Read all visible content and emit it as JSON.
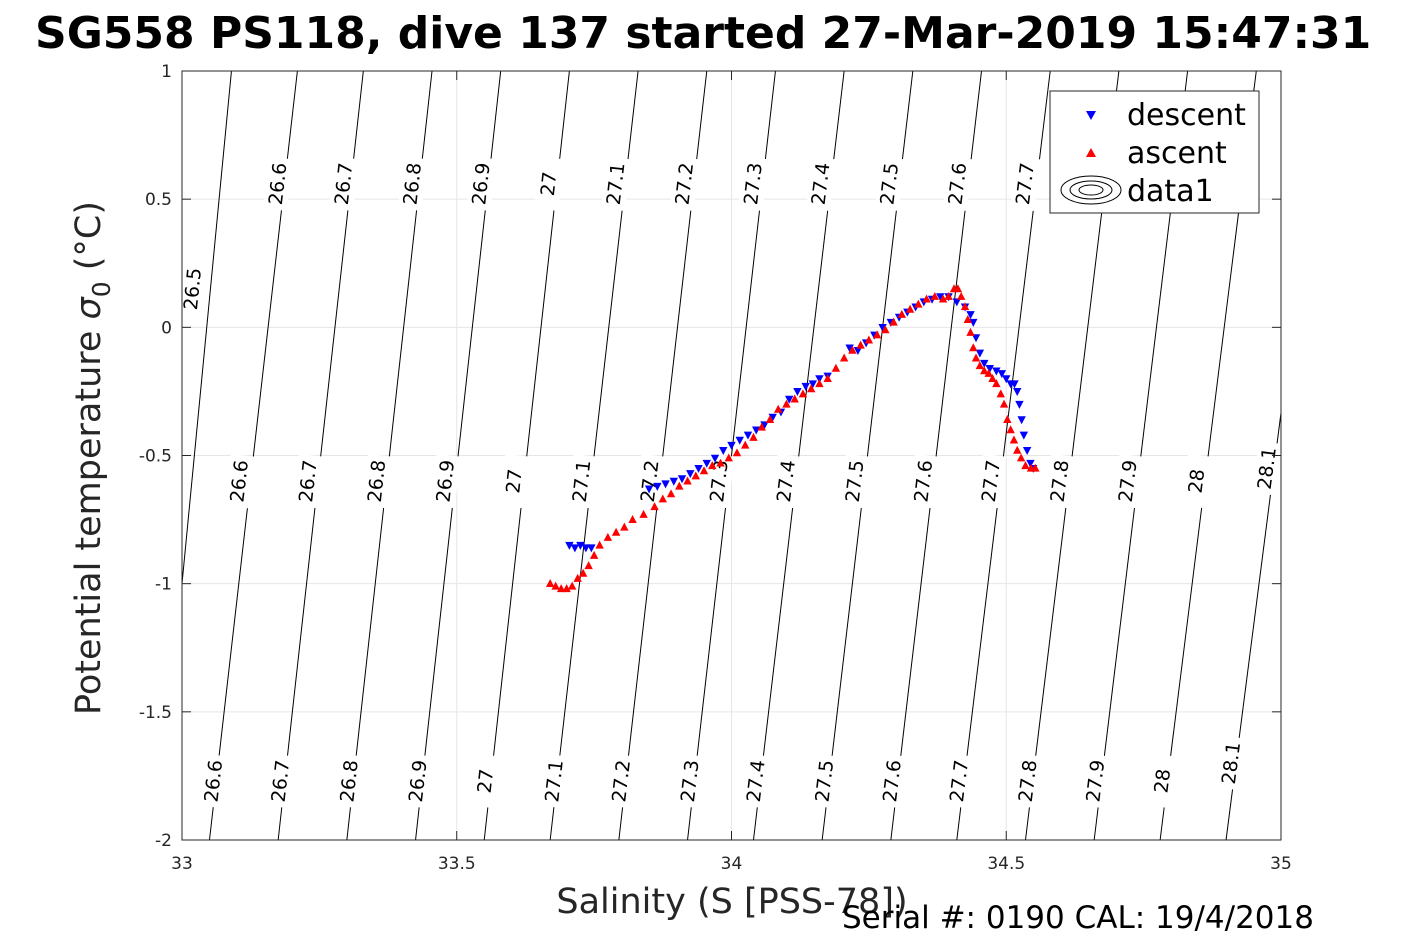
{
  "title": "SG558 PS118, dive 137 started 27-Mar-2019 15:47:31",
  "footer": "Serial #: 0190  CAL: 19/4/2018",
  "chart_data": {
    "type": "scatter",
    "xlabel": "Salinity (S [PSS-78])",
    "ylabel_main": "Potential temperature ",
    "ylabel_sigma": "σ",
    "ylabel_sub": "0",
    "ylabel_unit": " (°C)",
    "xlim": [
      33,
      35
    ],
    "ylim": [
      -2,
      1
    ],
    "xticks": [
      33,
      33.5,
      34,
      34.5,
      35
    ],
    "yticks": [
      -2,
      -1.5,
      -1,
      -0.5,
      0,
      0.5,
      1
    ],
    "grid": true,
    "legend_position": "top-right",
    "legend": [
      "descent",
      "ascent",
      "data1"
    ],
    "colors": {
      "descent": "#0000ff",
      "ascent": "#ff0000",
      "contour": "#000000",
      "grid": "#e6e6e6"
    },
    "contours": [
      {
        "level": "26.5",
        "x_top": 33.09,
        "x_bottom": 32.955,
        "labels": [
          [
            33.02,
            0.15
          ]
        ]
      },
      {
        "level": "26.6",
        "x_top": 33.21,
        "x_bottom": 33.05,
        "labels": [
          [
            33.175,
            0.56
          ],
          [
            33.105,
            -0.6
          ],
          [
            33.058,
            -1.77
          ]
        ]
      },
      {
        "level": "26.7",
        "x_top": 33.33,
        "x_bottom": 33.175,
        "labels": [
          [
            33.295,
            0.56
          ],
          [
            33.23,
            -0.6
          ],
          [
            33.18,
            -1.77
          ]
        ]
      },
      {
        "level": "26.8",
        "x_top": 33.455,
        "x_bottom": 33.3,
        "labels": [
          [
            33.42,
            0.56
          ],
          [
            33.355,
            -0.6
          ],
          [
            33.305,
            -1.77
          ]
        ]
      },
      {
        "level": "26.9",
        "x_top": 33.58,
        "x_bottom": 33.425,
        "labels": [
          [
            33.545,
            0.56
          ],
          [
            33.48,
            -0.6
          ],
          [
            33.43,
            -1.77
          ]
        ]
      },
      {
        "level": "27",
        "x_top": 33.705,
        "x_bottom": 33.55,
        "labels": [
          [
            33.668,
            0.56
          ],
          [
            33.605,
            -0.6
          ],
          [
            33.553,
            -1.77
          ]
        ]
      },
      {
        "level": "27.1",
        "x_top": 33.83,
        "x_bottom": 33.67,
        "labels": [
          [
            33.79,
            0.56
          ],
          [
            33.728,
            -0.6
          ],
          [
            33.678,
            -1.77
          ]
        ]
      },
      {
        "level": "27.2",
        "x_top": 33.955,
        "x_bottom": 33.795,
        "labels": [
          [
            33.915,
            0.56
          ],
          [
            33.852,
            -0.6
          ],
          [
            33.8,
            -1.77
          ]
        ]
      },
      {
        "level": "27.3",
        "x_top": 34.08,
        "x_bottom": 33.92,
        "labels": [
          [
            34.04,
            0.56
          ],
          [
            33.978,
            -0.6
          ],
          [
            33.925,
            -1.77
          ]
        ]
      },
      {
        "level": "27.4",
        "x_top": 34.205,
        "x_bottom": 34.04,
        "labels": [
          [
            34.163,
            0.56
          ],
          [
            34.1,
            -0.6
          ],
          [
            34.045,
            -1.77
          ]
        ]
      },
      {
        "level": "27.5",
        "x_top": 34.33,
        "x_bottom": 34.165,
        "labels": [
          [
            34.288,
            0.56
          ],
          [
            34.225,
            -0.6
          ],
          [
            34.17,
            -1.77
          ]
        ]
      },
      {
        "level": "27.6",
        "x_top": 34.455,
        "x_bottom": 34.29,
        "labels": [
          [
            34.412,
            0.56
          ],
          [
            34.35,
            -0.6
          ],
          [
            34.293,
            -1.77
          ]
        ]
      },
      {
        "level": "27.7",
        "x_top": 34.58,
        "x_bottom": 34.41,
        "labels": [
          [
            34.535,
            0.56
          ],
          [
            34.473,
            -0.6
          ],
          [
            34.415,
            -1.77
          ]
        ]
      },
      {
        "level": "27.8",
        "x_top": 34.705,
        "x_bottom": 34.535,
        "labels": [
          [
            34.598,
            -0.6
          ],
          [
            34.54,
            -1.77
          ]
        ]
      },
      {
        "level": "27.9",
        "x_top": 34.83,
        "x_bottom": 34.66,
        "labels": [
          [
            34.722,
            -0.6
          ],
          [
            34.663,
            -1.77
          ]
        ]
      },
      {
        "level": "28",
        "x_top": 34.955,
        "x_bottom": 34.78,
        "labels": [
          [
            34.847,
            -0.6
          ],
          [
            34.785,
            -1.77
          ]
        ]
      },
      {
        "level": "28.1",
        "x_top": 35.08,
        "x_bottom": 34.9,
        "labels": [
          [
            34.975,
            -0.55
          ],
          [
            34.91,
            -1.7
          ]
        ]
      }
    ],
    "series": [
      {
        "name": "descent",
        "marker": "down-triangle",
        "color": "#0000ff",
        "points": [
          [
            34.549,
            -0.55
          ],
          [
            34.544,
            -0.53
          ],
          [
            34.538,
            -0.48
          ],
          [
            34.532,
            -0.42
          ],
          [
            34.528,
            -0.36
          ],
          [
            34.524,
            -0.3
          ],
          [
            34.52,
            -0.25
          ],
          [
            34.515,
            -0.22
          ],
          [
            34.508,
            -0.22
          ],
          [
            34.5,
            -0.2
          ],
          [
            34.492,
            -0.18
          ],
          [
            34.482,
            -0.17
          ],
          [
            34.47,
            -0.16
          ],
          [
            34.46,
            -0.14
          ],
          [
            34.452,
            -0.1
          ],
          [
            34.445,
            -0.04
          ],
          [
            34.44,
            0.02
          ],
          [
            34.435,
            0.05
          ],
          [
            34.425,
            0.08
          ],
          [
            34.41,
            0.1
          ],
          [
            34.395,
            0.12
          ],
          [
            34.38,
            0.12
          ],
          [
            34.365,
            0.11
          ],
          [
            34.35,
            0.1
          ],
          [
            34.335,
            0.08
          ],
          [
            34.32,
            0.06
          ],
          [
            34.305,
            0.04
          ],
          [
            34.29,
            0.02
          ],
          [
            34.275,
            0.0
          ],
          [
            34.26,
            -0.03
          ],
          [
            34.245,
            -0.06
          ],
          [
            34.23,
            -0.09
          ],
          [
            34.215,
            -0.08
          ],
          [
            34.175,
            -0.19
          ],
          [
            34.16,
            -0.2
          ],
          [
            34.148,
            -0.22
          ],
          [
            34.135,
            -0.23
          ],
          [
            34.12,
            -0.25
          ],
          [
            34.105,
            -0.28
          ],
          [
            34.09,
            -0.33
          ],
          [
            34.075,
            -0.35
          ],
          [
            34.06,
            -0.38
          ],
          [
            34.045,
            -0.4
          ],
          [
            34.03,
            -0.42
          ],
          [
            34.015,
            -0.44
          ],
          [
            34.0,
            -0.46
          ],
          [
            33.985,
            -0.48
          ],
          [
            33.97,
            -0.51
          ],
          [
            33.955,
            -0.53
          ],
          [
            33.94,
            -0.55
          ],
          [
            33.925,
            -0.57
          ],
          [
            33.91,
            -0.59
          ],
          [
            33.895,
            -0.6
          ],
          [
            33.88,
            -0.61
          ],
          [
            33.865,
            -0.62
          ],
          [
            33.85,
            -0.63
          ],
          [
            33.745,
            -0.86
          ],
          [
            33.735,
            -0.86
          ],
          [
            33.725,
            -0.85
          ],
          [
            33.715,
            -0.86
          ],
          [
            33.705,
            -0.85
          ]
        ]
      },
      {
        "name": "ascent",
        "marker": "up-triangle",
        "color": "#ff0000",
        "points": [
          [
            33.67,
            -1.0
          ],
          [
            33.68,
            -1.01
          ],
          [
            33.69,
            -1.02
          ],
          [
            33.7,
            -1.02
          ],
          [
            33.71,
            -1.01
          ],
          [
            33.72,
            -0.98
          ],
          [
            33.73,
            -0.96
          ],
          [
            33.74,
            -0.93
          ],
          [
            33.75,
            -0.89
          ],
          [
            33.76,
            -0.85
          ],
          [
            33.775,
            -0.82
          ],
          [
            33.79,
            -0.8
          ],
          [
            33.805,
            -0.78
          ],
          [
            33.82,
            -0.75
          ],
          [
            33.84,
            -0.73
          ],
          [
            33.86,
            -0.7
          ],
          [
            33.875,
            -0.67
          ],
          [
            33.89,
            -0.65
          ],
          [
            33.905,
            -0.62
          ],
          [
            33.92,
            -0.6
          ],
          [
            33.935,
            -0.58
          ],
          [
            33.95,
            -0.56
          ],
          [
            33.965,
            -0.54
          ],
          [
            33.98,
            -0.53
          ],
          [
            33.995,
            -0.51
          ],
          [
            34.01,
            -0.49
          ],
          [
            34.025,
            -0.46
          ],
          [
            34.04,
            -0.43
          ],
          [
            34.055,
            -0.39
          ],
          [
            34.07,
            -0.36
          ],
          [
            34.085,
            -0.32
          ],
          [
            34.1,
            -0.3
          ],
          [
            34.115,
            -0.28
          ],
          [
            34.13,
            -0.26
          ],
          [
            34.145,
            -0.24
          ],
          [
            34.16,
            -0.22
          ],
          [
            34.175,
            -0.2
          ],
          [
            34.19,
            -0.16
          ],
          [
            34.205,
            -0.12
          ],
          [
            34.22,
            -0.09
          ],
          [
            34.235,
            -0.07
          ],
          [
            34.25,
            -0.05
          ],
          [
            34.265,
            -0.03
          ],
          [
            34.28,
            -0.01
          ],
          [
            34.295,
            0.02
          ],
          [
            34.31,
            0.05
          ],
          [
            34.325,
            0.07
          ],
          [
            34.34,
            0.09
          ],
          [
            34.355,
            0.11
          ],
          [
            34.37,
            0.12
          ],
          [
            34.385,
            0.11
          ],
          [
            34.395,
            0.12
          ],
          [
            34.405,
            0.15
          ],
          [
            34.412,
            0.15
          ],
          [
            34.418,
            0.12
          ],
          [
            34.425,
            0.08
          ],
          [
            34.43,
            0.03
          ],
          [
            34.435,
            -0.02
          ],
          [
            34.44,
            -0.08
          ],
          [
            34.445,
            -0.12
          ],
          [
            34.452,
            -0.15
          ],
          [
            34.46,
            -0.17
          ],
          [
            34.468,
            -0.18
          ],
          [
            34.475,
            -0.2
          ],
          [
            34.482,
            -0.22
          ],
          [
            34.49,
            -0.26
          ],
          [
            34.496,
            -0.3
          ],
          [
            34.502,
            -0.36
          ],
          [
            34.508,
            -0.4
          ],
          [
            34.514,
            -0.44
          ],
          [
            34.52,
            -0.48
          ],
          [
            34.527,
            -0.51
          ],
          [
            34.535,
            -0.54
          ],
          [
            34.545,
            -0.55
          ],
          [
            34.553,
            -0.55
          ]
        ]
      }
    ]
  }
}
